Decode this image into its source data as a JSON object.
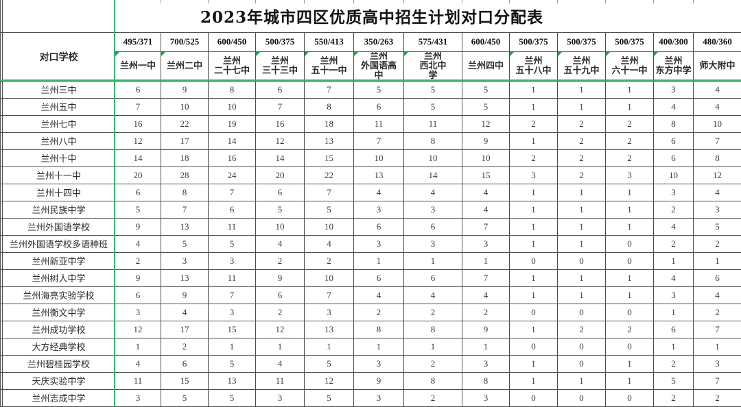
{
  "title": "2023年城市四区优质高中招生计划对口分配表",
  "table": {
    "corner_label": "对口学校",
    "columns": [
      {
        "quota": "495/371",
        "name": "兰州一中",
        "lines": [
          "兰州一中"
        ],
        "error_marker": true
      },
      {
        "quota": "700/525",
        "name": "兰州二中",
        "lines": [
          "兰州二中"
        ],
        "error_marker": true
      },
      {
        "quota": "600/450",
        "name": "兰州二十七中",
        "lines": [
          "兰州",
          "二十七中"
        ],
        "error_marker": false
      },
      {
        "quota": "500/375",
        "name": "兰州三十三中",
        "lines": [
          "兰州",
          "三十三中"
        ],
        "error_marker": true
      },
      {
        "quota": "550/413",
        "name": "兰州五十一中",
        "lines": [
          "兰州",
          "五十一中"
        ],
        "error_marker": true
      },
      {
        "quota": "350/263",
        "name": "兰州外国语高中",
        "lines": [
          "兰州",
          "外国语高",
          "中"
        ],
        "error_marker": true
      },
      {
        "quota": "575/431",
        "name": "兰州西北中学",
        "lines": [
          "兰州",
          "西北中",
          "学"
        ],
        "error_marker": true
      },
      {
        "quota": "600/450",
        "name": "兰州四中",
        "lines": [
          "兰州四中"
        ],
        "error_marker": false
      },
      {
        "quota": "500/375",
        "name": "兰州五十八中",
        "lines": [
          "兰州",
          "五十八中"
        ],
        "error_marker": true
      },
      {
        "quota": "500/375",
        "name": "兰州五十九中",
        "lines": [
          "兰州",
          "五十九中"
        ],
        "error_marker": true
      },
      {
        "quota": "500/375",
        "name": "兰州六十一中",
        "lines": [
          "兰州",
          "六十一中"
        ],
        "error_marker": true
      },
      {
        "quota": "400/300",
        "name": "兰州东方中学",
        "lines": [
          "兰州",
          "东方中学"
        ],
        "error_marker": true
      },
      {
        "quota": "480/360",
        "name": "师大附中",
        "lines": [
          "师大附中"
        ],
        "error_marker": false
      }
    ],
    "rows": [
      {
        "name": "兰州三中",
        "values": [
          6,
          9,
          8,
          6,
          7,
          5,
          5,
          5,
          1,
          1,
          1,
          3,
          4
        ]
      },
      {
        "name": "兰州五中",
        "values": [
          7,
          10,
          10,
          7,
          8,
          6,
          5,
          5,
          1,
          1,
          1,
          4,
          4
        ],
        "active_cell_marker": true
      },
      {
        "name": "兰州七中",
        "values": [
          16,
          22,
          19,
          16,
          18,
          11,
          11,
          12,
          2,
          2,
          2,
          8,
          10
        ]
      },
      {
        "name": "兰州八中",
        "values": [
          12,
          17,
          14,
          12,
          13,
          7,
          8,
          9,
          1,
          2,
          2,
          6,
          7
        ]
      },
      {
        "name": "兰州十中",
        "values": [
          14,
          18,
          16,
          14,
          15,
          10,
          10,
          10,
          2,
          2,
          2,
          6,
          8
        ]
      },
      {
        "name": "兰州十一中",
        "values": [
          20,
          28,
          24,
          20,
          22,
          13,
          14,
          15,
          3,
          2,
          3,
          10,
          12
        ]
      },
      {
        "name": "兰州十四中",
        "values": [
          6,
          8,
          7,
          6,
          7,
          4,
          4,
          4,
          1,
          1,
          1,
          3,
          4
        ]
      },
      {
        "name": "兰州民族中学",
        "values": [
          5,
          7,
          6,
          5,
          5,
          3,
          3,
          4,
          1,
          1,
          1,
          2,
          3
        ]
      },
      {
        "name": "兰州外国语学校",
        "values": [
          9,
          13,
          11,
          10,
          10,
          6,
          6,
          7,
          1,
          1,
          1,
          4,
          5
        ]
      },
      {
        "name": "兰州外国语学校多语种班",
        "values": [
          4,
          5,
          5,
          4,
          4,
          3,
          3,
          3,
          1,
          1,
          0,
          2,
          2
        ]
      },
      {
        "name": "兰州新亚中学",
        "values": [
          2,
          3,
          3,
          2,
          2,
          1,
          1,
          1,
          0,
          0,
          0,
          1,
          1
        ]
      },
      {
        "name": "兰州树人中学",
        "values": [
          9,
          13,
          11,
          9,
          10,
          6,
          6,
          7,
          1,
          1,
          1,
          4,
          6
        ]
      },
      {
        "name": "兰州海亮实验学校",
        "values": [
          6,
          9,
          7,
          6,
          7,
          4,
          4,
          4,
          1,
          1,
          1,
          3,
          4
        ]
      },
      {
        "name": "兰州衡文中学",
        "values": [
          3,
          4,
          3,
          2,
          3,
          2,
          2,
          2,
          0,
          0,
          0,
          1,
          2
        ]
      },
      {
        "name": "兰州成功学校",
        "values": [
          12,
          17,
          15,
          12,
          13,
          8,
          8,
          9,
          1,
          2,
          2,
          6,
          7
        ]
      },
      {
        "name": "大方经典学校",
        "values": [
          1,
          2,
          1,
          1,
          1,
          1,
          1,
          1,
          0,
          0,
          0,
          1,
          1
        ]
      },
      {
        "name": "兰州碧桂园学校",
        "values": [
          4,
          6,
          5,
          4,
          5,
          3,
          2,
          3,
          1,
          0,
          1,
          2,
          3
        ]
      },
      {
        "name": "天庆实验中学",
        "values": [
          11,
          15,
          13,
          11,
          12,
          9,
          8,
          8,
          1,
          1,
          1,
          5,
          7
        ]
      },
      {
        "name": "兰州志成中学",
        "values": [
          3,
          5,
          5,
          3,
          5,
          3,
          2,
          3,
          0,
          0,
          0,
          2,
          2
        ]
      }
    ]
  },
  "colors": {
    "freeze_line_green": "#3cb371",
    "error_marker_green": "#1e9e40",
    "grid_line": "#4d4d4d",
    "text": "#2b2b2b"
  }
}
